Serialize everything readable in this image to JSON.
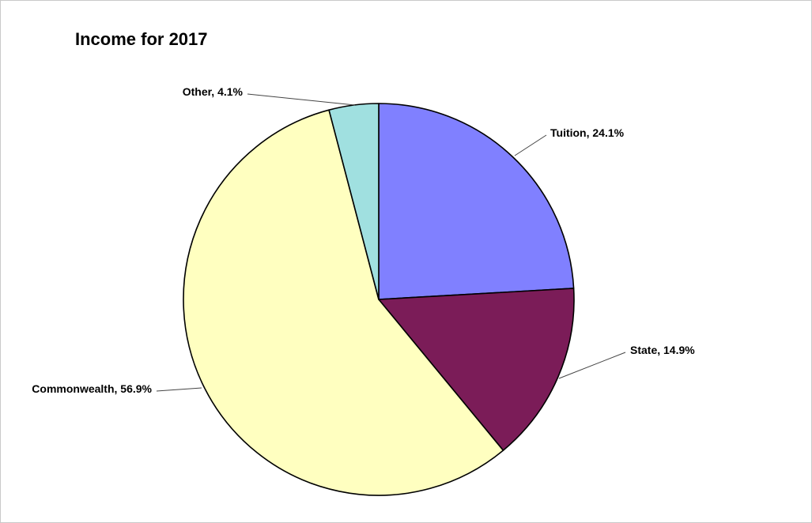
{
  "chart_data": {
    "type": "pie",
    "title": "Income for 2017",
    "slices": [
      {
        "label": "Tuition",
        "value": 24.1,
        "display": "Tuition, 24.1%",
        "color": "#8080ff"
      },
      {
        "label": "State",
        "value": 14.9,
        "display": "State, 14.9%",
        "color": "#7b1c58"
      },
      {
        "label": "Commonwealth",
        "value": 56.9,
        "display": "Commonwealth, 56.9%",
        "color": "#ffffc0"
      },
      {
        "label": "Other",
        "value": 4.1,
        "display": "Other, 4.1%",
        "color": "#a0e0e0"
      }
    ],
    "units": "%",
    "start_angle": "12 o'clock",
    "direction": "clockwise",
    "legend": "none",
    "slice_border_color": "#000000"
  }
}
